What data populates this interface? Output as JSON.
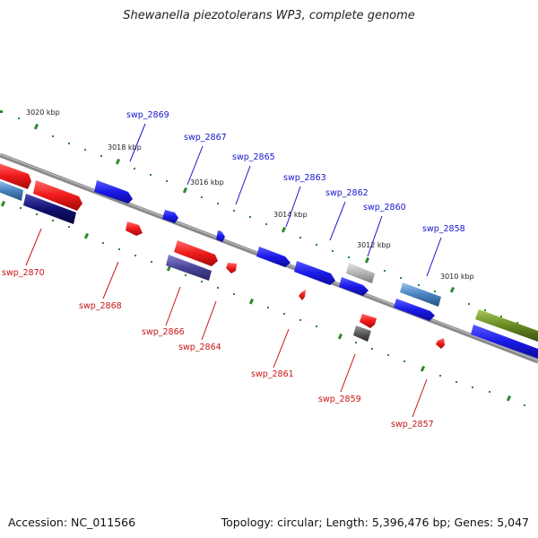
{
  "title": "Shewanella piezotolerans WP3, complete genome",
  "accession": "Accession: NC_011566",
  "summary": "Topology: circular; Length: 5,396,476 bp; Genes: 5,047",
  "colors": {
    "plus_strand": "#1a1af0",
    "minus_strand": "#f01a1a",
    "backbone": "#8a8a8a",
    "ticks": "#2a8a2a"
  },
  "scale_labels": [
    "3020 kbp",
    "3018 kbp",
    "3016 kbp",
    "3014 kbp",
    "3012 kbp",
    "3010 kbp"
  ],
  "genes_plus": [
    {
      "name": "swp_2869"
    },
    {
      "name": "swp_2867"
    },
    {
      "name": "swp_2865"
    },
    {
      "name": "swp_2863"
    },
    {
      "name": "swp_2862"
    },
    {
      "name": "swp_2860"
    },
    {
      "name": "swp_2858"
    }
  ],
  "genes_minus": [
    {
      "name": "swp_2870"
    },
    {
      "name": "swp_2868"
    },
    {
      "name": "swp_2866"
    },
    {
      "name": "swp_2864"
    },
    {
      "name": "swp_2861"
    },
    {
      "name": "swp_2859"
    },
    {
      "name": "swp_2857"
    }
  ]
}
